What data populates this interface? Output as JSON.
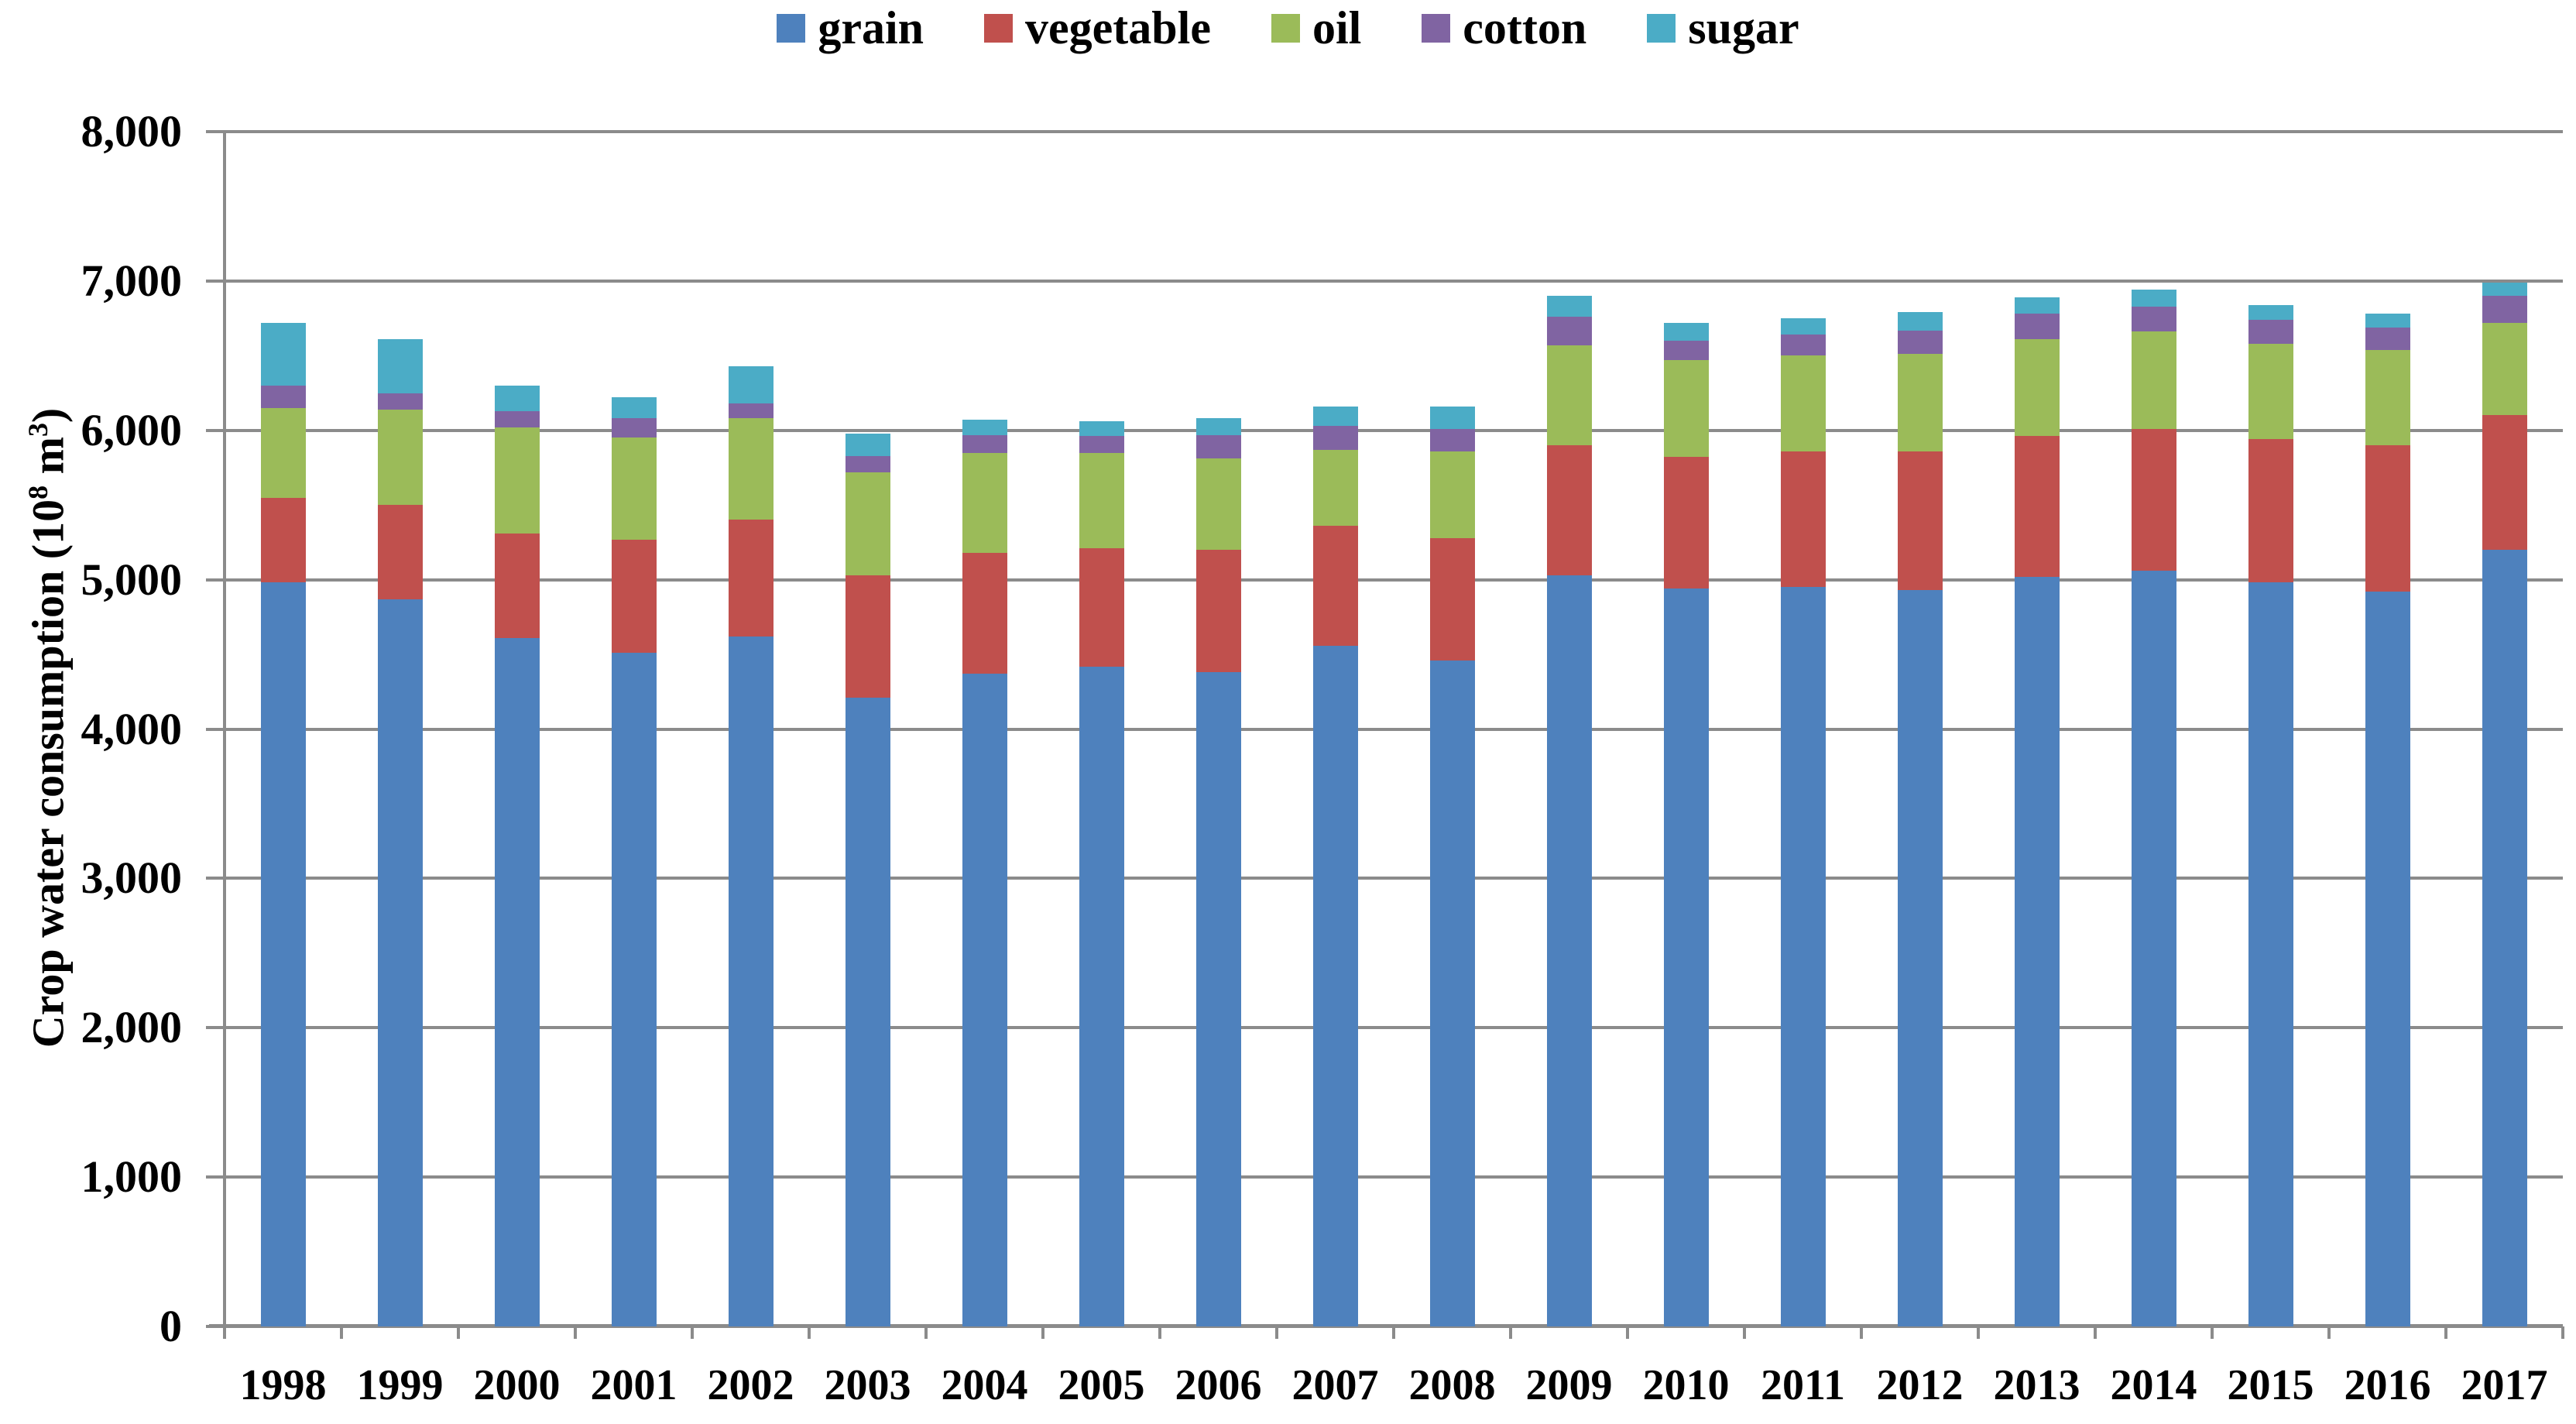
{
  "chart_data": {
    "type": "bar",
    "stacked": true,
    "title": "",
    "xlabel": "",
    "ylabel": "Crop water consumption (10⁸ m³)",
    "ylabel_runs": [
      {
        "text": "Crop water consumption (10"
      },
      {
        "text": "8",
        "sup": true
      },
      {
        "text": " m"
      },
      {
        "text": "3",
        "sup": true
      },
      {
        "text": ")"
      }
    ],
    "ylim": [
      0,
      8000
    ],
    "ytick_step": 1000,
    "ytick_labels": [
      "0",
      "1,000",
      "2,000",
      "3,000",
      "4,000",
      "5,000",
      "6,000",
      "7,000",
      "8,000"
    ],
    "grid": true,
    "legend_position": "top",
    "categories": [
      "1998",
      "1999",
      "2000",
      "2001",
      "2002",
      "2003",
      "2004",
      "2005",
      "2006",
      "2007",
      "2008",
      "2009",
      "2010",
      "2011",
      "2012",
      "2013",
      "2014",
      "2015",
      "2016",
      "2017"
    ],
    "series": [
      {
        "name": "grain",
        "color": "#4E81BD",
        "values": [
          4980,
          4870,
          4610,
          4510,
          4620,
          4210,
          4370,
          4420,
          4380,
          4560,
          4460,
          5030,
          4940,
          4950,
          4930,
          5020,
          5060,
          4980,
          4920,
          5200
        ]
      },
      {
        "name": "vegetable",
        "color": "#C0504D",
        "values": [
          570,
          630,
          700,
          760,
          780,
          820,
          810,
          790,
          820,
          800,
          820,
          870,
          880,
          910,
          930,
          940,
          950,
          960,
          980,
          900
        ]
      },
      {
        "name": "oil",
        "color": "#9BBB59",
        "values": [
          600,
          640,
          710,
          680,
          680,
          690,
          670,
          640,
          610,
          510,
          580,
          670,
          650,
          640,
          650,
          650,
          650,
          640,
          640,
          620
        ]
      },
      {
        "name": "cotton",
        "color": "#8064A2",
        "values": [
          150,
          110,
          110,
          130,
          100,
          110,
          120,
          110,
          160,
          160,
          150,
          190,
          130,
          140,
          160,
          170,
          170,
          160,
          150,
          180
        ]
      },
      {
        "name": "sugar",
        "color": "#4BACC6",
        "values": [
          420,
          360,
          170,
          140,
          250,
          150,
          100,
          100,
          110,
          130,
          150,
          140,
          120,
          110,
          120,
          110,
          110,
          100,
          90,
          90
        ]
      }
    ],
    "axis_color": "#8b8b8b",
    "text_color": "#000000"
  }
}
